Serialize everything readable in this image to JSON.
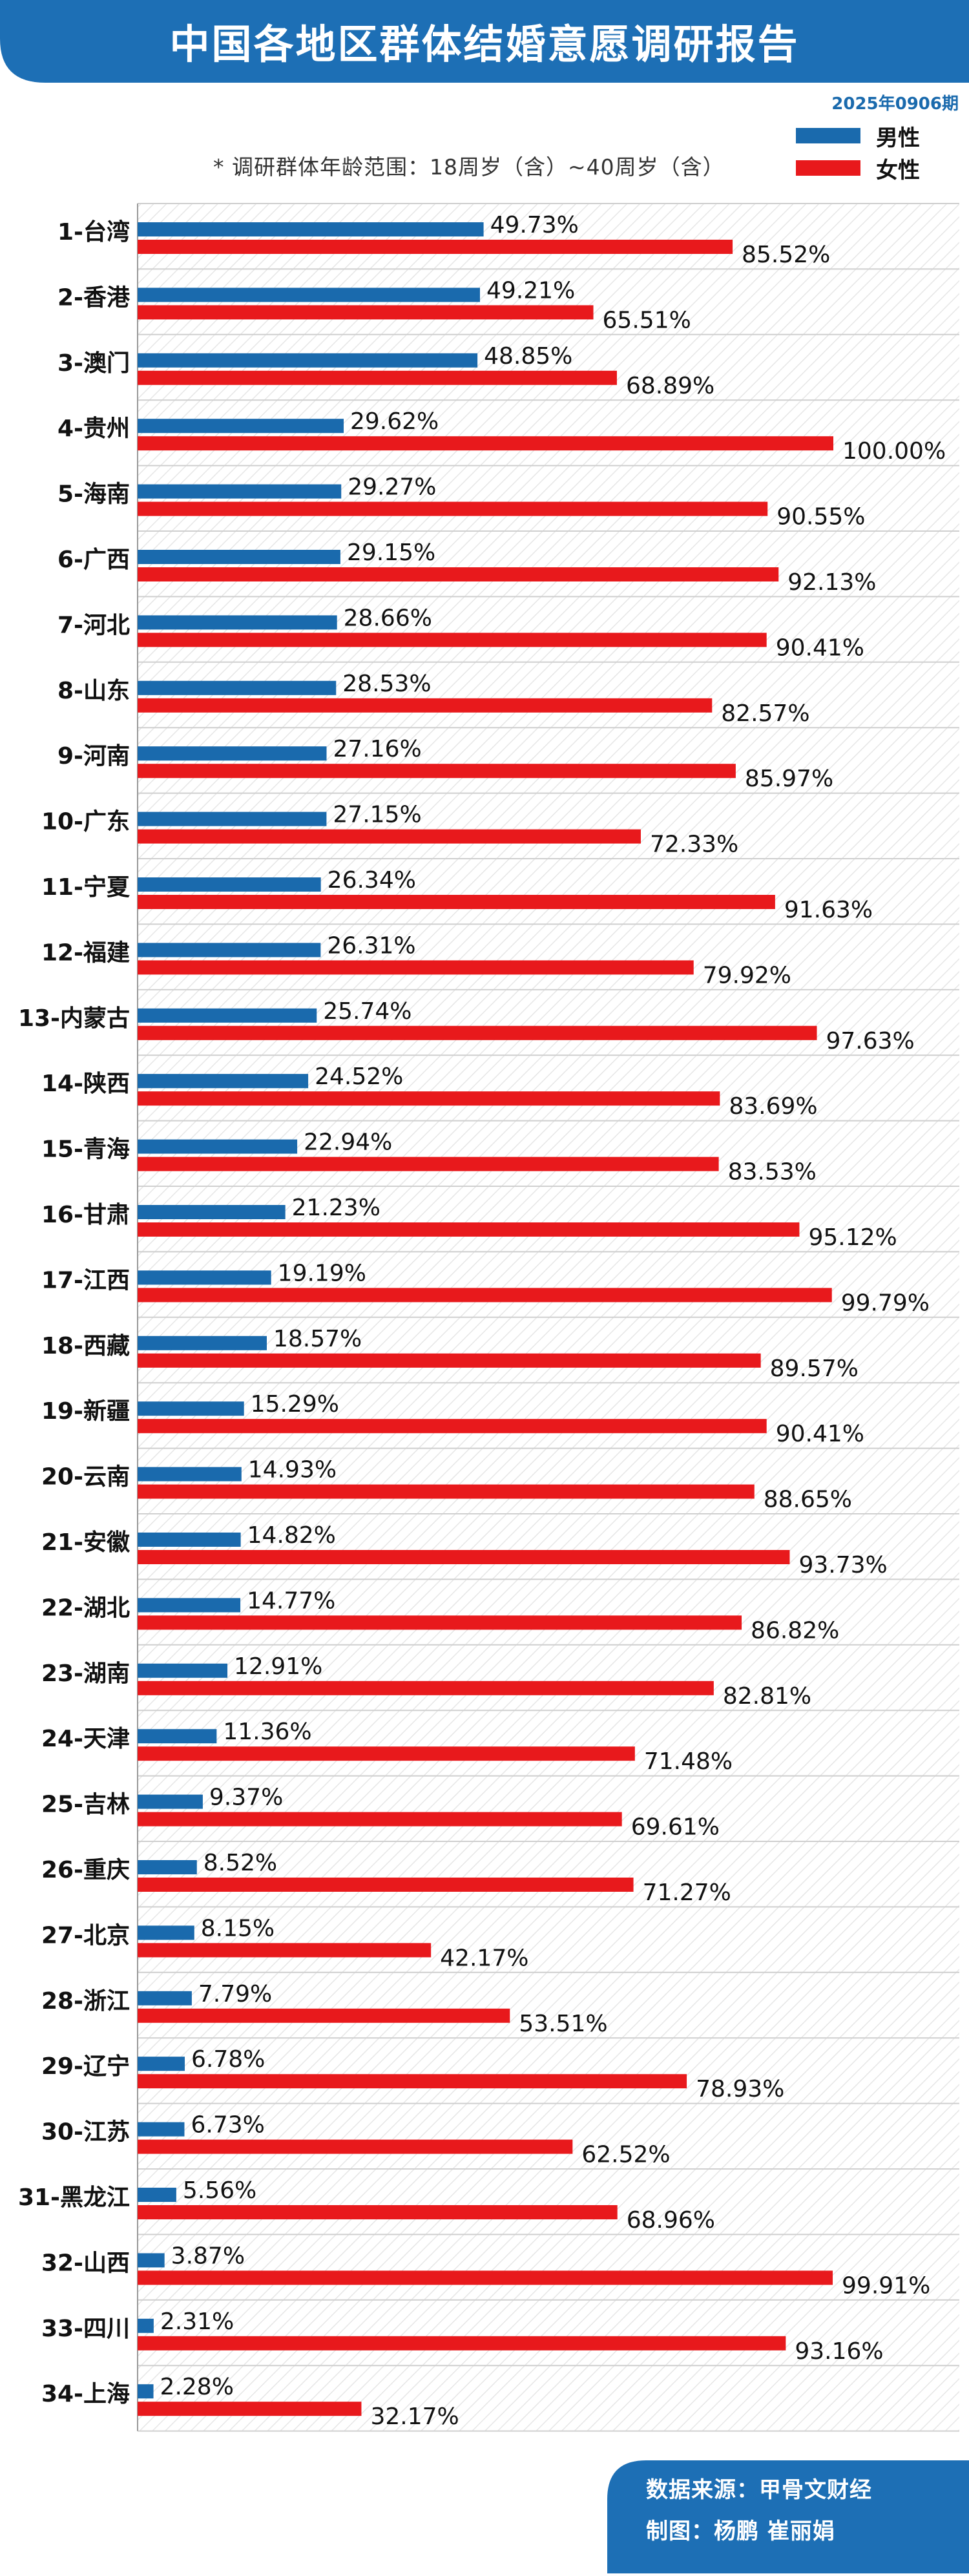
{
  "header": {
    "title": "中国各地区群体结婚意愿调研报告",
    "issue": "2025年0906期",
    "note": "* 调研群体年龄范围：18周岁（含）~40周岁（含）"
  },
  "footer": {
    "source": "数据来源：甲骨文财经",
    "maker": "制图：杨鹏 崔丽娟"
  },
  "colors": {
    "banner": "#1d6fb5",
    "male": "#1a6aad",
    "female": "#e8191c",
    "grid": "#cfcfcf",
    "hatch": "#e6e6e6"
  },
  "chart_data": {
    "type": "bar",
    "orientation": "horizontal",
    "categories": [
      "1-台湾",
      "2-香港",
      "3-澳门",
      "4-贵州",
      "5-海南",
      "6-广西",
      "7-河北",
      "8-山东",
      "9-河南",
      "10-广东",
      "11-宁夏",
      "12-福建",
      "13-内蒙古",
      "14-陕西",
      "15-青海",
      "16-甘肃",
      "17-江西",
      "18-西藏",
      "19-新疆",
      "20-云南",
      "21-安徽",
      "22-湖北",
      "23-湖南",
      "24-天津",
      "25-吉林",
      "26-重庆",
      "27-北京",
      "28-浙江",
      "29-辽宁",
      "30-江苏",
      "31-黑龙江",
      "32-山西",
      "33-四川",
      "34-上海"
    ],
    "series": [
      {
        "name": "男性",
        "values": [
          49.73,
          49.21,
          48.85,
          29.62,
          29.27,
          29.15,
          28.66,
          28.53,
          27.16,
          27.15,
          26.34,
          26.31,
          25.74,
          24.52,
          22.94,
          21.23,
          19.19,
          18.57,
          15.29,
          14.93,
          14.82,
          14.77,
          12.91,
          11.36,
          9.37,
          8.52,
          8.15,
          7.79,
          6.78,
          6.73,
          5.56,
          3.87,
          2.31,
          2.28
        ]
      },
      {
        "name": "女性",
        "values": [
          85.52,
          65.51,
          68.89,
          100.0,
          90.55,
          92.13,
          90.41,
          82.57,
          85.97,
          72.33,
          91.63,
          79.92,
          97.63,
          83.69,
          83.53,
          95.12,
          99.79,
          89.57,
          90.41,
          88.65,
          93.73,
          86.82,
          82.81,
          71.48,
          69.61,
          71.27,
          42.17,
          53.51,
          78.93,
          62.52,
          68.96,
          99.91,
          93.16,
          32.17
        ]
      }
    ],
    "value_suffix": "%",
    "xlim": [
      0,
      100
    ],
    "legend_position": "top-right",
    "grid": true
  }
}
